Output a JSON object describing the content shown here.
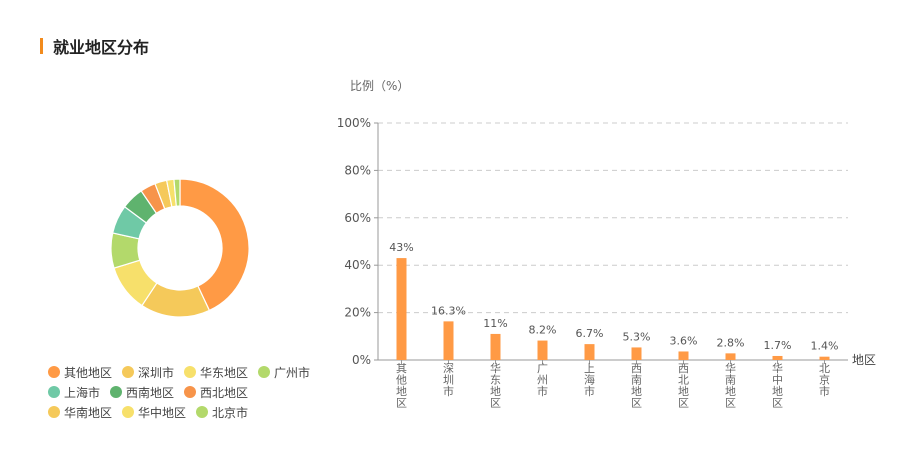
{
  "header": {
    "title": "就业地区分布"
  },
  "colors": {
    "accent": "#f28b1d",
    "bar": "#ff9a45",
    "axis": "#999999",
    "grid": "#cccccc",
    "text": "#666666"
  },
  "chart_data": [
    {
      "type": "pie",
      "title": "",
      "categories": [
        "其他地区",
        "深圳市",
        "华东地区",
        "广州市",
        "上海市",
        "西南地区",
        "西北地区",
        "华南地区",
        "华中地区",
        "北京市"
      ],
      "values": [
        43,
        16.3,
        11,
        8.2,
        6.7,
        5.3,
        3.6,
        2.8,
        1.7,
        1.4
      ],
      "colors": [
        "#ff9a45",
        "#f5c95a",
        "#f7e06b",
        "#b3d96b",
        "#6fc9a6",
        "#5fb36e",
        "#f7944a",
        "#f5c95a",
        "#f7e06b",
        "#b3d96b"
      ],
      "legend_placement": "bottom"
    },
    {
      "type": "bar",
      "title": "",
      "ylabel": "比例（%）",
      "xlabel": "地区",
      "categories": [
        "其他地区",
        "深圳市",
        "华东地区",
        "广州市",
        "上海市",
        "西南地区",
        "西北地区",
        "华南地区",
        "华中地区",
        "北京市"
      ],
      "values": [
        43,
        16.3,
        11,
        8.2,
        6.7,
        5.3,
        3.6,
        2.8,
        1.7,
        1.4
      ],
      "value_labels": [
        "43%",
        "16.3%",
        "11%",
        "8.2%",
        "6.7%",
        "5.3%",
        "3.6%",
        "2.8%",
        "1.7%",
        "1.4%"
      ],
      "ylim": [
        0,
        100
      ],
      "yticks": [
        0,
        20,
        40,
        60,
        80,
        100
      ],
      "ytick_labels": [
        "0%",
        "20%",
        "40%",
        "60%",
        "80%",
        "100%"
      ],
      "grid": true
    }
  ]
}
